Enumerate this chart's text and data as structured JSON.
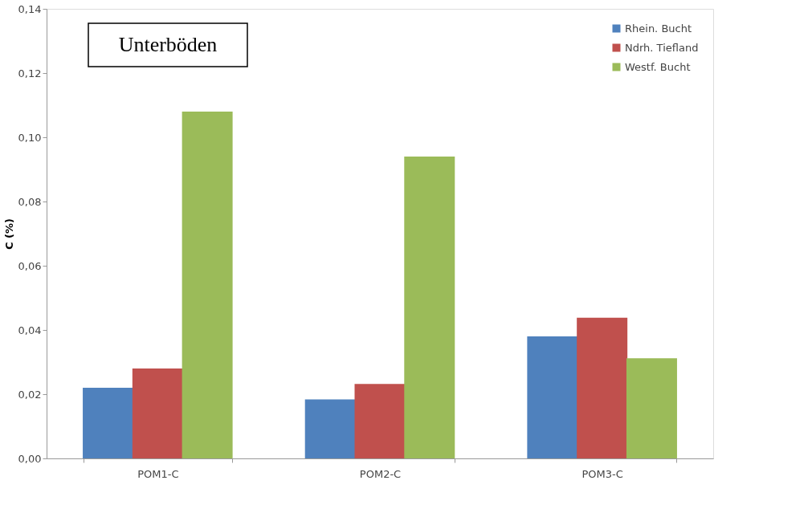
{
  "chart_data": {
    "type": "bar",
    "ylabel": "C (%)",
    "categories": [
      "POM1-C",
      "POM2-C",
      "POM3-C"
    ],
    "series": [
      {
        "name": "Rhein. Bucht",
        "color": "#4f81bd",
        "values": [
          0.022,
          0.0184,
          0.038
        ]
      },
      {
        "name": "Ndrh. Tiefland",
        "color": "#c0504d",
        "values": [
          0.028,
          0.0232,
          0.0438
        ]
      },
      {
        "name": "Westf. Bucht",
        "color": "#9bbb59",
        "values": [
          0.108,
          0.094,
          0.0312
        ]
      }
    ],
    "ylim": [
      0,
      0.14
    ],
    "yticks": [
      {
        "value": 0,
        "label": "0,00"
      },
      {
        "value": 0.02,
        "label": "0,02"
      },
      {
        "value": 0.04,
        "label": "0,04"
      },
      {
        "value": 0.06,
        "label": "0,06"
      },
      {
        "value": 0.08,
        "label": "0,08"
      },
      {
        "value": 0.1,
        "label": "0,10"
      },
      {
        "value": 0.12,
        "label": "0,12"
      },
      {
        "value": 0.14,
        "label": "0,14"
      }
    ],
    "annotations": [
      "Unterböden"
    ],
    "grid": false,
    "legend": "top right"
  }
}
